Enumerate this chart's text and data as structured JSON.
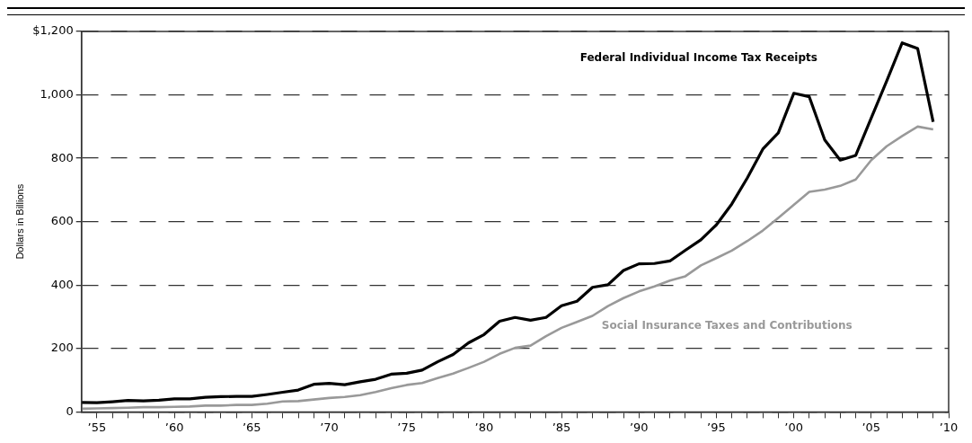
{
  "chart_data": {
    "type": "line",
    "ylabel": "Dollars in Billions",
    "x": [
      1954,
      1955,
      1956,
      1957,
      1958,
      1959,
      1960,
      1961,
      1962,
      1963,
      1964,
      1965,
      1966,
      1967,
      1968,
      1969,
      1970,
      1971,
      1972,
      1973,
      1974,
      1975,
      1976,
      1977,
      1978,
      1979,
      1980,
      1981,
      1982,
      1983,
      1984,
      1985,
      1986,
      1987,
      1988,
      1989,
      1990,
      1991,
      1992,
      1993,
      1994,
      1995,
      1996,
      1997,
      1998,
      1999,
      2000,
      2001,
      2002,
      2003,
      2004,
      2005,
      2006,
      2007,
      2008,
      2009
    ],
    "series": [
      {
        "name": "Federal Individual Income Tax Receipts",
        "color": "#000000",
        "values": [
          30,
          29,
          32,
          36,
          35,
          37,
          41,
          41,
          46,
          48,
          49,
          49,
          55,
          62,
          69,
          87,
          90,
          86,
          95,
          103,
          119,
          122,
          132,
          158,
          181,
          218,
          244,
          286,
          298,
          289,
          298,
          335,
          349,
          393,
          401,
          446,
          467,
          468,
          476,
          510,
          543,
          590,
          656,
          738,
          829,
          880,
          1005,
          994,
          858,
          794,
          809,
          927,
          1044,
          1164,
          1146,
          915
        ]
      },
      {
        "name": "Social Insurance Taxes and Contributions",
        "color": "#999999",
        "values": [
          10,
          11,
          12,
          13,
          15,
          15,
          16,
          17,
          20,
          20,
          22,
          22,
          26,
          33,
          34,
          39,
          44,
          47,
          53,
          63,
          75,
          85,
          91,
          107,
          121,
          139,
          158,
          183,
          202,
          209,
          239,
          265,
          284,
          303,
          334,
          359,
          380,
          396,
          414,
          428,
          462,
          485,
          509,
          539,
          572,
          612,
          653,
          694,
          701,
          713,
          733,
          794,
          838,
          870,
          900,
          891
        ]
      }
    ],
    "xlim": [
      1954,
      2010
    ],
    "xticks": [
      {
        "value": 1955,
        "label": "’55"
      },
      {
        "value": 1956,
        "label": null
      },
      {
        "value": 1957,
        "label": null
      },
      {
        "value": 1958,
        "label": null
      },
      {
        "value": 1959,
        "label": null
      },
      {
        "value": 1960,
        "label": "’60"
      },
      {
        "value": 1961,
        "label": null
      },
      {
        "value": 1962,
        "label": null
      },
      {
        "value": 1963,
        "label": null
      },
      {
        "value": 1964,
        "label": null
      },
      {
        "value": 1965,
        "label": "’65"
      },
      {
        "value": 1966,
        "label": null
      },
      {
        "value": 1967,
        "label": null
      },
      {
        "value": 1968,
        "label": null
      },
      {
        "value": 1969,
        "label": null
      },
      {
        "value": 1970,
        "label": "’70"
      },
      {
        "value": 1971,
        "label": null
      },
      {
        "value": 1972,
        "label": null
      },
      {
        "value": 1973,
        "label": null
      },
      {
        "value": 1974,
        "label": null
      },
      {
        "value": 1975,
        "label": "’75"
      },
      {
        "value": 1976,
        "label": null
      },
      {
        "value": 1977,
        "label": null
      },
      {
        "value": 1978,
        "label": null
      },
      {
        "value": 1979,
        "label": null
      },
      {
        "value": 1980,
        "label": "’80"
      },
      {
        "value": 1981,
        "label": null
      },
      {
        "value": 1982,
        "label": null
      },
      {
        "value": 1983,
        "label": null
      },
      {
        "value": 1984,
        "label": null
      },
      {
        "value": 1985,
        "label": "’85"
      },
      {
        "value": 1986,
        "label": null
      },
      {
        "value": 1987,
        "label": null
      },
      {
        "value": 1988,
        "label": null
      },
      {
        "value": 1989,
        "label": null
      },
      {
        "value": 1990,
        "label": "’90"
      },
      {
        "value": 1991,
        "label": null
      },
      {
        "value": 1992,
        "label": null
      },
      {
        "value": 1993,
        "label": null
      },
      {
        "value": 1994,
        "label": null
      },
      {
        "value": 1995,
        "label": "’95"
      },
      {
        "value": 1996,
        "label": null
      },
      {
        "value": 1997,
        "label": null
      },
      {
        "value": 1998,
        "label": null
      },
      {
        "value": 1999,
        "label": null
      },
      {
        "value": 2000,
        "label": "’00"
      },
      {
        "value": 2001,
        "label": null
      },
      {
        "value": 2002,
        "label": null
      },
      {
        "value": 2003,
        "label": null
      },
      {
        "value": 2004,
        "label": null
      },
      {
        "value": 2005,
        "label": "’05"
      },
      {
        "value": 2006,
        "label": null
      },
      {
        "value": 2007,
        "label": null
      },
      {
        "value": 2008,
        "label": null
      },
      {
        "value": 2009,
        "label": null
      },
      {
        "value": 2010,
        "label": "’10"
      }
    ],
    "ylim": [
      0,
      1200
    ],
    "yticks": [
      0,
      200,
      400,
      600,
      800,
      {
        "value": 1000,
        "label": "1,000"
      },
      {
        "value": 1200,
        "label": "$1,200"
      }
    ],
    "grid": "y",
    "legend": false,
    "marker": "none",
    "line_style": "solid"
  }
}
